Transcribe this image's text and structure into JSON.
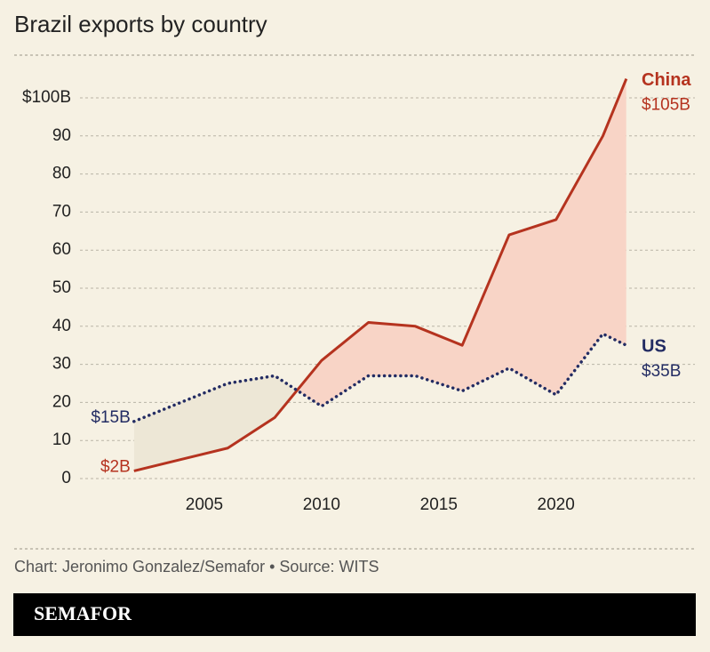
{
  "chart_data": {
    "type": "line",
    "title": "Brazil exports by country",
    "source": "Chart: Jeronimo Gonzalez/Semafor • Source: WITS",
    "brand": "SEMAFOR",
    "x": [
      2002,
      2004,
      2006,
      2008,
      2010,
      2012,
      2014,
      2016,
      2018,
      2020,
      2022,
      2023
    ],
    "series": [
      {
        "name": "China",
        "color": "#b5331f",
        "style": "solid",
        "values": [
          2,
          5,
          8,
          16,
          31,
          41,
          40,
          35,
          64,
          68,
          90,
          105
        ],
        "value_labels": [
          "$2B",
          null,
          null,
          null,
          null,
          null,
          null,
          null,
          null,
          null,
          null,
          "$105B"
        ]
      },
      {
        "name": "US",
        "color": "#232c63",
        "style": "dotted",
        "values": [
          15,
          20,
          25,
          27,
          19,
          27,
          27,
          23,
          29,
          22,
          38,
          35
        ],
        "value_labels": [
          "$15B",
          null,
          null,
          null,
          null,
          null,
          null,
          null,
          null,
          null,
          null,
          "$35B"
        ]
      }
    ],
    "xlim": [
      2000,
      2026
    ],
    "xticks": [
      2005,
      2010,
      2015,
      2020
    ],
    "ylim": [
      0,
      100
    ],
    "yticks": [
      0,
      10,
      20,
      30,
      40,
      50,
      60,
      70,
      80,
      90,
      {
        "value": 100,
        "label": "$100B"
      }
    ],
    "grid": true,
    "fill_colors": {
      "above": "#f8d4c6",
      "below": "#ede7d6"
    }
  }
}
